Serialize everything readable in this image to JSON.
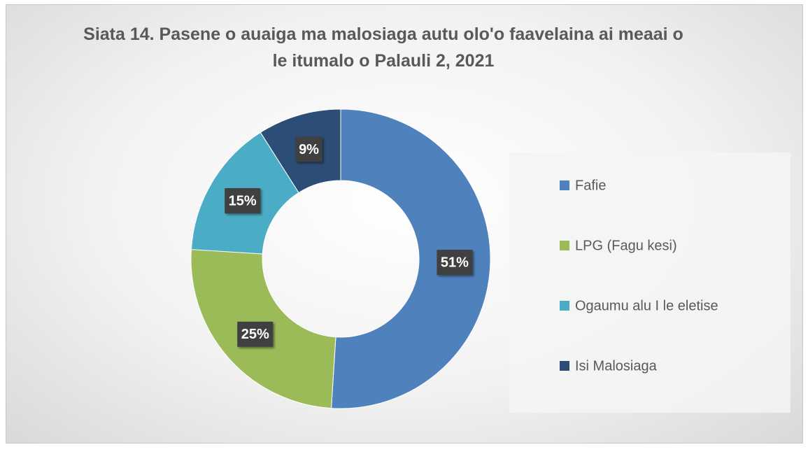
{
  "chart_data": {
    "type": "donut",
    "title": "Siata 14. Pasene o auaiga ma malosiaga autu olo'o faavelaina ai meaai o le itumalo o Palauli 2, 2021",
    "categories": [
      "Fafie",
      "LPG (Fagu kesi)",
      "Ogaumu alu I le eletise",
      "Isi Malosiaga"
    ],
    "values": [
      51,
      25,
      15,
      9
    ],
    "value_labels": [
      "51%",
      "25%",
      "15%",
      "9%"
    ],
    "colors": [
      "#4f81bd",
      "#9bbb59",
      "#4bacc6",
      "#2c4d75"
    ],
    "legend": "right"
  }
}
